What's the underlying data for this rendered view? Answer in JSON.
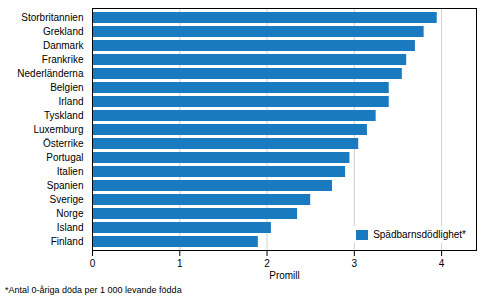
{
  "chart_data": {
    "type": "bar",
    "orientation": "horizontal",
    "categories": [
      "Finland",
      "Island",
      "Norge",
      "Sverige",
      "Spanien",
      "Italien",
      "Portugal",
      "Österrike",
      "Luxemburg",
      "Tyskland",
      "Irland",
      "Belgien",
      "Nederländerna",
      "Frankrike",
      "Danmark",
      "Grekland",
      "Storbritannien"
    ],
    "series": [
      {
        "name": "Spädbarnsdödlighet*",
        "color": "#1a7abf",
        "values": [
          1.9,
          2.05,
          2.35,
          2.5,
          2.75,
          2.9,
          2.95,
          3.05,
          3.15,
          3.25,
          3.4,
          3.4,
          3.55,
          3.6,
          3.7,
          3.8,
          3.95
        ]
      }
    ],
    "xlabel": "Promill",
    "xlim": [
      0,
      4.4
    ],
    "xticks": [
      0,
      1,
      2,
      3,
      4
    ],
    "grid": true,
    "legend": "lower right",
    "annotations": [
      "*Antal 0-åriga döda per 1 000 levande födda"
    ]
  }
}
